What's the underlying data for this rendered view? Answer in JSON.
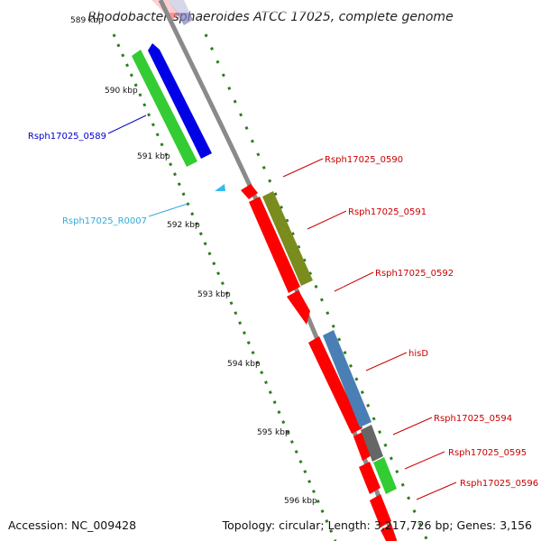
{
  "title": "Rhodobacter sphaeroides ATCC 17025, complete genome",
  "footer": {
    "accession": "Accession: NC_009428",
    "topology": "Topology: circular; Length: 3,217,726 bp; Genes: 3,156"
  },
  "colors": {
    "backbone": "#8a8a8a",
    "gc_ticks": "#2e7d1e",
    "red": "#ff0000",
    "blue": "#0000e6",
    "green": "#33cc33",
    "olive": "#7a8c1e",
    "steel": "#4a7fb5",
    "gray": "#666666",
    "cyan": "#33bbee",
    "dark_red_label": "#cc0000",
    "blue_label": "#0000cc",
    "cyan_label": "#33aadd"
  },
  "scale_ticks": [
    "589 kbp",
    "590 kbp",
    "591 kbp",
    "592 kbp",
    "593 kbp",
    "594 kbp",
    "595 kbp",
    "596 kbp"
  ],
  "genes": [
    {
      "label": "Rsph17025_0589",
      "color": "blue"
    },
    {
      "label": "Rsph17025_R0007",
      "color": "cyan"
    },
    {
      "label": "Rsph17025_0590",
      "color": "red"
    },
    {
      "label": "Rsph17025_0591",
      "color": "red"
    },
    {
      "label": "Rsph17025_0592",
      "color": "red"
    },
    {
      "label": "hisD",
      "color": "red"
    },
    {
      "label": "Rsph17025_0594",
      "color": "red"
    },
    {
      "label": "Rsph17025_0595",
      "color": "red"
    },
    {
      "label": "Rsph17025_0596",
      "color": "red"
    }
  ]
}
